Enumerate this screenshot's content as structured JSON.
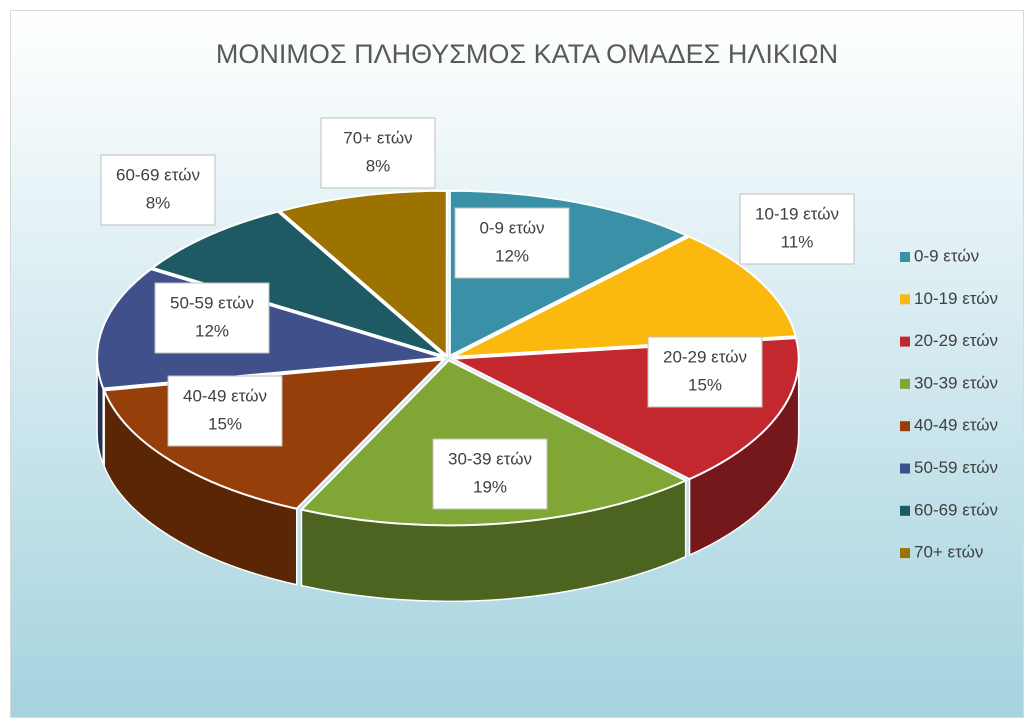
{
  "chart_data": {
    "type": "pie",
    "title": "ΜΟΝΙΜΟΣ ΠΛΗΘΥΣΜΟΣ ΚΑΤΑ ΟΜΑΔΕΣ ΗΛΙΚΙΩΝ",
    "categories": [
      "0-9  ετών",
      "10-19 ετών",
      "20-29 ετών",
      "30-39 ετών",
      "40-49 ετών",
      "50-59 ετών",
      "60-69 ετών",
      "70+ ετών"
    ],
    "values": [
      12,
      11,
      15,
      19,
      15,
      12,
      8,
      8
    ],
    "value_labels": [
      "12%",
      "11%",
      "15%",
      "19%",
      "15%",
      "12%",
      "8%",
      "8%"
    ],
    "colors": [
      "#3a90a6",
      "#fbb80f",
      "#c3282e",
      "#80a635",
      "#973f0a",
      "#40508a",
      "#1e5a63",
      "#9c7300"
    ],
    "legend": "right"
  }
}
